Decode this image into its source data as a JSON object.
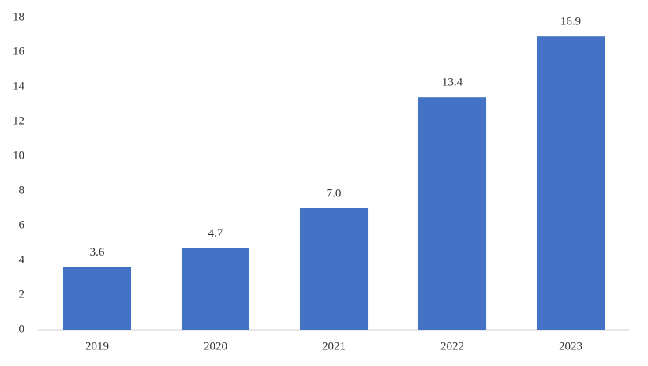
{
  "chart_data": {
    "type": "bar",
    "categories": [
      "2019",
      "2020",
      "2021",
      "2022",
      "2023"
    ],
    "values": [
      3.6,
      4.7,
      7.0,
      13.4,
      16.9
    ],
    "value_labels": [
      "3.6",
      "4.7",
      "7.0",
      "13.4",
      "16.9"
    ],
    "color": "#4472c4",
    "ylim": [
      0,
      18
    ],
    "yticks": [
      0,
      2,
      4,
      6,
      8,
      10,
      12,
      14,
      16,
      18
    ],
    "grid": false
  }
}
